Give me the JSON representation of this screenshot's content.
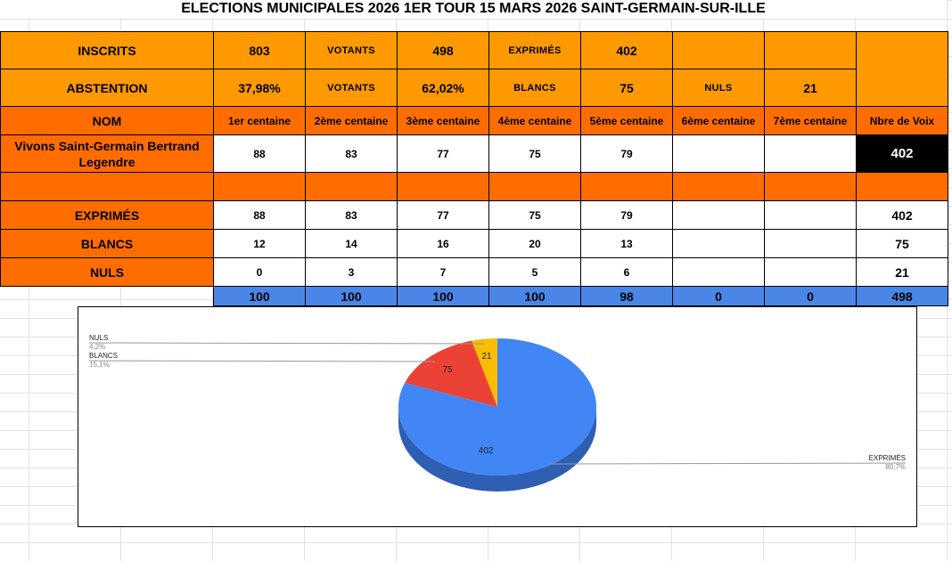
{
  "title": "ELECTIONS MUNICIPALES 2026 1ER TOUR 15 MARS 2026 SAINT-GERMAIN-SUR-ILLE",
  "summary": {
    "row1": [
      "INSCRITS",
      "803",
      "VOTANTS",
      "498",
      "EXPRIMÉS",
      "402",
      "",
      "",
      ""
    ],
    "row2": [
      "ABSTENTION",
      "37,98%",
      "VOTANTS",
      "62,02%",
      "BLANCS",
      "75",
      "NULS",
      "21",
      ""
    ]
  },
  "header": [
    "NOM",
    "1er centaine",
    "2ème centaine",
    "3ème centaine",
    "4ème centaine",
    "5ème centaine",
    "6ème centaine",
    "7ème centaine",
    "Nbre de Voix"
  ],
  "candidate": {
    "name": "Vivons Saint-Germain Bertrand Legendre",
    "values": [
      "88",
      "83",
      "77",
      "75",
      "79",
      "",
      ""
    ],
    "total": "402"
  },
  "rows": [
    {
      "label": "EXPRIMÉS",
      "values": [
        "88",
        "83",
        "77",
        "75",
        "79",
        "",
        ""
      ],
      "total": "402"
    },
    {
      "label": "BLANCS",
      "values": [
        "12",
        "14",
        "16",
        "20",
        "13",
        "",
        ""
      ],
      "total": "75"
    },
    {
      "label": "NULS",
      "values": [
        "0",
        "3",
        "7",
        "5",
        "6",
        "",
        ""
      ],
      "total": "21"
    }
  ],
  "totals": [
    "100",
    "100",
    "100",
    "100",
    "98",
    "0",
    "0",
    "498"
  ],
  "colors": {
    "orange_light": "#ff9900",
    "orange_dark": "#ff6d01",
    "blue": "#4a86e8",
    "pie_blue": "#4285f4",
    "pie_blue_side": "#2f5fb3",
    "pie_red": "#ea4335",
    "pie_red_side": "#a8302a",
    "pie_yellow": "#fbbc04",
    "pie_yellow_side": "#b88905"
  },
  "chart_data": {
    "type": "pie",
    "slices": [
      {
        "name": "EXPRIMÉS",
        "value": 402,
        "pct_label": "80,7%",
        "color": "#4285f4"
      },
      {
        "name": "BLANCS",
        "value": 75,
        "pct_label": "15,1%",
        "color": "#ea4335"
      },
      {
        "name": "NULS",
        "value": 21,
        "pct_label": "4,2%",
        "color": "#fbbc04"
      }
    ]
  }
}
